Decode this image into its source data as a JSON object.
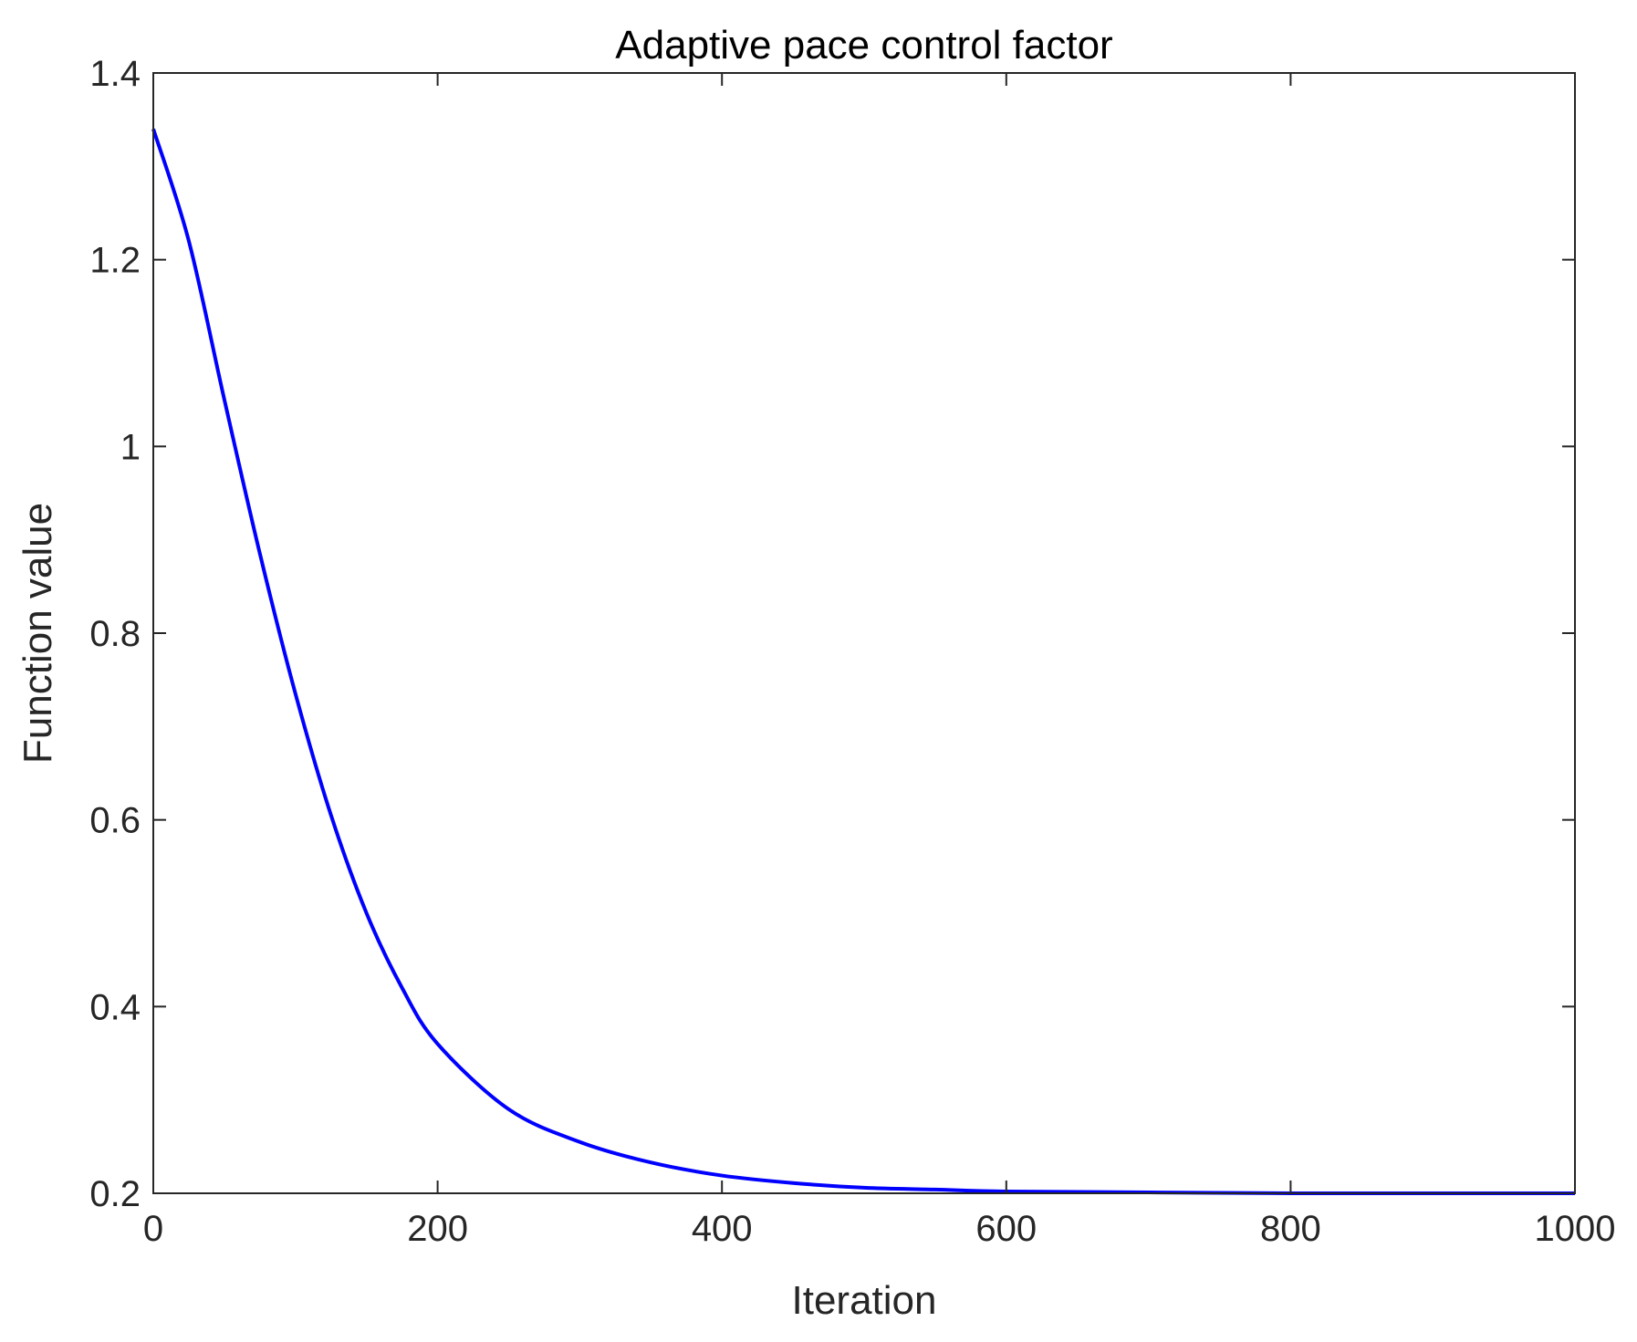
{
  "chart_data": {
    "type": "line",
    "title": "Adaptive pace control factor",
    "xlabel": "Iteration",
    "ylabel": "Function value",
    "xlim": [
      0,
      1000
    ],
    "ylim": [
      0.2,
      1.4
    ],
    "xticks": [
      0,
      200,
      400,
      600,
      800,
      1000
    ],
    "xtick_labels": [
      "0",
      "200",
      "400",
      "600",
      "800",
      "1000"
    ],
    "yticks": [
      0.2,
      0.4,
      0.6,
      0.8,
      1.0,
      1.2,
      1.4
    ],
    "ytick_labels": [
      "0.2",
      "0.4",
      "0.6",
      "0.8",
      "1",
      "1.2",
      "1.4"
    ],
    "grid": false,
    "series": [
      {
        "color": "#0000ff",
        "x": [
          0,
          25,
          50,
          75,
          100,
          125,
          150,
          175,
          200,
          250,
          300,
          350,
          400,
          450,
          500,
          550,
          600,
          700,
          800,
          900,
          1000
        ],
        "y": [
          1.34,
          1.22,
          1.05,
          0.885,
          0.735,
          0.605,
          0.5,
          0.42,
          0.36,
          0.29,
          0.255,
          0.233,
          0.219,
          0.211,
          0.206,
          0.204,
          0.202,
          0.201,
          0.2,
          0.2,
          0.2
        ]
      }
    ]
  }
}
